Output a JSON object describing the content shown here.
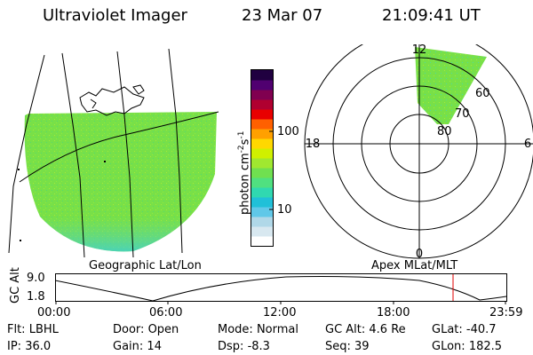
{
  "header": {
    "instrument": "Ultraviolet Imager",
    "date": "23 Mar 07",
    "time": "21:09:41 UT"
  },
  "colorbar": {
    "unit_label": "photon cm",
    "unit_sup1": "-2",
    "unit_s": "s",
    "unit_sup2": "-1",
    "ticks": [
      {
        "label": "100",
        "value": 100
      },
      {
        "label": "10",
        "value": 10
      }
    ],
    "colors": [
      "#ffffff",
      "#d8e8f0",
      "#b0d8e8",
      "#60c8e8",
      "#20c0d8",
      "#30d8b0",
      "#50e080",
      "#70e050",
      "#a0e830",
      "#d0f000",
      "#ffd800",
      "#ffa000",
      "#ff6000",
      "#e80000",
      "#b00030",
      "#800050",
      "#500070",
      "#200040"
    ]
  },
  "map_left": {
    "caption": "Geographic Lat/Lon",
    "fill_color": "#78e048"
  },
  "polar": {
    "caption": "Apex MLat/MLT",
    "mlt_labels": {
      "top": "12",
      "left": "18",
      "right": "6",
      "bottom": "0"
    },
    "lat_labels": [
      "80",
      "70",
      "60"
    ],
    "fill_color": "#78e048"
  },
  "altitude_plot": {
    "ylabel": "GC Alt",
    "yticks": [
      "9.0",
      "1.8"
    ],
    "xticks": [
      "00:00",
      "06:00",
      "12:00",
      "18:00",
      "23:59"
    ],
    "marker_color": "#e00000"
  },
  "status": {
    "row1": [
      {
        "key": "Flt:",
        "value": "LBHL"
      },
      {
        "key": "Door:",
        "value": "Open"
      },
      {
        "key": "Mode:",
        "value": "Normal"
      },
      {
        "key": "GC Alt:",
        "value": "4.6 Re"
      },
      {
        "key": "GLat:",
        "value": "-40.7"
      }
    ],
    "row2": [
      {
        "key": "IP:",
        "value": "36.0"
      },
      {
        "key": "Gain:",
        "value": "14"
      },
      {
        "key": "Dsp:",
        "value": "-8.3"
      },
      {
        "key": "Seq:",
        "value": "39"
      },
      {
        "key": "GLon:",
        "value": "182.5"
      }
    ]
  }
}
